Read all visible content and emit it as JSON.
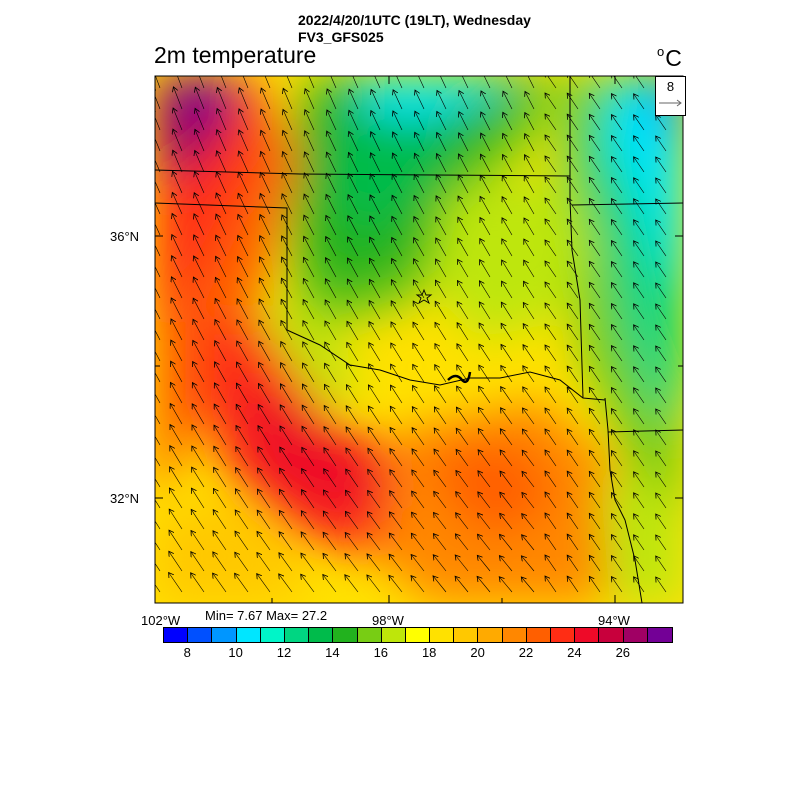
{
  "header": {
    "datetime": "2022/4/20/1UTC (19LT), Wednesday",
    "model": "FV3_GFS025"
  },
  "title": "2m temperature",
  "units": "C",
  "vector_key": {
    "value": "8"
  },
  "axes": {
    "lat_labels": [
      "36°N",
      "32°N"
    ],
    "lon_labels": [
      "102°W",
      "98°W",
      "94°W"
    ]
  },
  "stats": "Min= 7.67 Max= 27.2",
  "colorbar": {
    "colors": [
      "#0000ff",
      "#0050ff",
      "#0096ff",
      "#00e6ff",
      "#00f5c8",
      "#00d682",
      "#00bb4b",
      "#22b21e",
      "#78cd14",
      "#bee60a",
      "#ffff00",
      "#ffe100",
      "#ffc800",
      "#ffaa00",
      "#ff8700",
      "#ff5f00",
      "#ff2d14",
      "#ee0a28",
      "#c8003c",
      "#a00064",
      "#730096"
    ],
    "labels": [
      "8",
      "10",
      "12",
      "14",
      "16",
      "18",
      "20",
      "22",
      "24",
      "26"
    ]
  }
}
